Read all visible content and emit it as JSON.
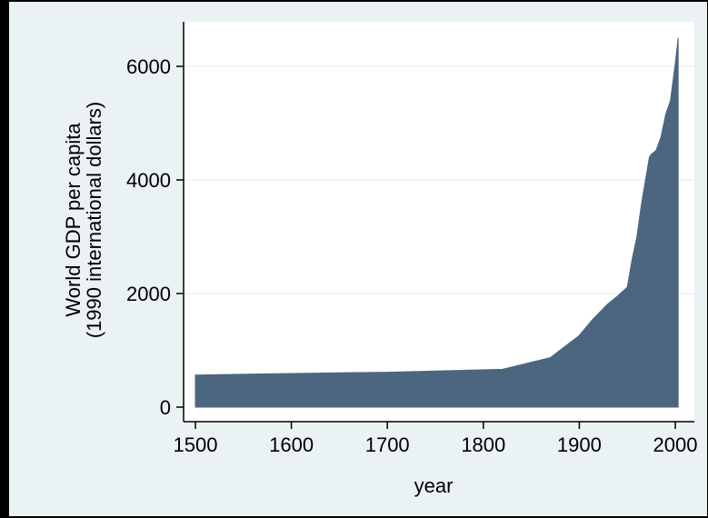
{
  "chart_data": {
    "type": "area",
    "ylabel_lines": [
      "World GDP per capita",
      "(1990 international dollars)"
    ],
    "xlabel": "year",
    "x_ticks": [
      1500,
      1600,
      1700,
      1800,
      1900,
      2000
    ],
    "y_ticks": [
      0,
      2000,
      4000,
      6000
    ],
    "x_tick_labels": [
      "1500",
      "1600",
      "1700",
      "1800",
      "1900",
      "2000"
    ],
    "y_tick_labels": [
      "0",
      "2000",
      "4000",
      "6000"
    ],
    "xlim": [
      1500,
      2003
    ],
    "ylim": [
      0,
      6500
    ],
    "grid": true,
    "colors": {
      "fill": "#4d6680",
      "background": "#eaf2f3",
      "plot_bg": "#ffffff",
      "grid": "#eaf2f3"
    },
    "x": [
      1500,
      1600,
      1700,
      1820,
      1870,
      1900,
      1913,
      1929,
      1940,
      1950,
      1955,
      1960,
      1965,
      1970,
      1973,
      1975,
      1980,
      1985,
      1990,
      1995,
      2000,
      2003
    ],
    "values": [
      565,
      593,
      615,
      667,
      873,
      1262,
      1526,
      1806,
      1958,
      2113,
      2600,
      3000,
      3600,
      4100,
      4400,
      4450,
      4520,
      4750,
      5150,
      5400,
      6050,
      6500
    ]
  }
}
